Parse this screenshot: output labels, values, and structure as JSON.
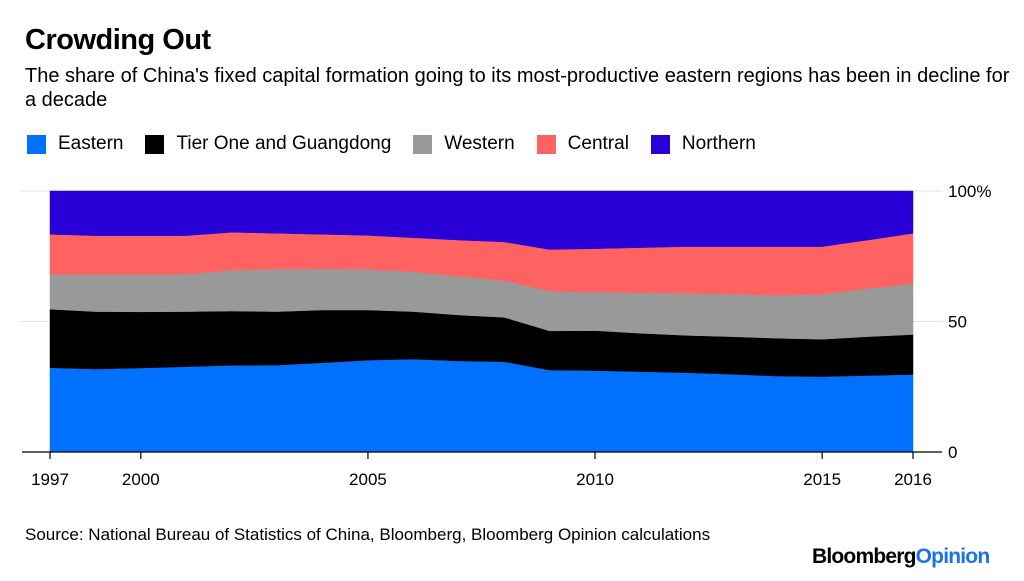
{
  "title": "Crowding Out",
  "subtitle": "The share of China's fixed capital formation going to its most-productive eastern regions has been in decline for a decade",
  "source": "Source: National Bureau of Statistics of China, Bloomberg, Bloomberg Opinion calculations",
  "logo": {
    "brand": "Bloomberg",
    "suffix": "Opinion"
  },
  "chart_data": {
    "type": "area",
    "stacked": true,
    "title": "Crowding Out",
    "xlabel": "",
    "ylabel": "",
    "ylim": [
      0,
      100
    ],
    "y_ticks": [
      {
        "value": 0,
        "label": "0"
      },
      {
        "value": 50,
        "label": "50"
      },
      {
        "value": 100,
        "label": "100%"
      }
    ],
    "x_ticks": [
      {
        "value": 1997,
        "label": "1997"
      },
      {
        "value": 2000,
        "label": "2000"
      },
      {
        "value": 2005,
        "label": "2005"
      },
      {
        "value": 2010,
        "label": "2010"
      },
      {
        "value": 2015,
        "label": "2015"
      },
      {
        "value": 2016,
        "label": "2016"
      }
    ],
    "x": [
      1997,
      1998.5,
      2000,
      2001,
      2002,
      2003,
      2004,
      2005,
      2006,
      2007,
      2008,
      2009,
      2010,
      2011,
      2012,
      2013,
      2014,
      2015,
      2015.5,
      2016
    ],
    "grid": true,
    "y_axis_side": "right",
    "legend_placement": "top-left",
    "series": [
      {
        "name": "Eastern",
        "color": "#0070ff",
        "values": [
          32.3,
          31.8,
          32.2,
          32.7,
          33.2,
          33.3,
          34.2,
          35.2,
          35.6,
          34.9,
          34.6,
          31.4,
          31.2,
          30.8,
          30.4,
          29.8,
          29.1,
          28.9,
          29.3,
          29.7
        ]
      },
      {
        "name": "Tier One and Guangdong",
        "color": "#000000",
        "values": [
          22.4,
          22.0,
          21.5,
          21.1,
          20.8,
          20.5,
          20.2,
          19.2,
          18.2,
          17.6,
          17.0,
          15.0,
          15.3,
          14.7,
          14.3,
          14.4,
          14.5,
          14.3,
          14.9,
          15.3
        ]
      },
      {
        "name": "Western",
        "color": "#999999",
        "values": [
          13.4,
          14.3,
          14.4,
          14.3,
          15.7,
          16.2,
          15.8,
          15.6,
          15.2,
          14.9,
          14.1,
          15.2,
          14.8,
          15.5,
          16.1,
          16.3,
          16.5,
          17.2,
          18.4,
          19.6
        ]
      },
      {
        "name": "Central",
        "color": "#ff6361",
        "values": [
          15.3,
          14.8,
          14.8,
          14.8,
          14.5,
          13.8,
          13.2,
          13.0,
          13.1,
          13.8,
          14.8,
          16.0,
          16.6,
          17.3,
          17.9,
          18.2,
          18.6,
          18.3,
          18.6,
          19.2
        ]
      },
      {
        "name": "Northern",
        "color": "#2800d7",
        "values": [
          16.6,
          17.1,
          17.1,
          17.1,
          15.8,
          16.2,
          16.6,
          17.0,
          17.9,
          18.8,
          19.5,
          22.4,
          22.1,
          21.7,
          21.3,
          21.3,
          21.3,
          21.3,
          18.8,
          16.2
        ]
      }
    ]
  }
}
